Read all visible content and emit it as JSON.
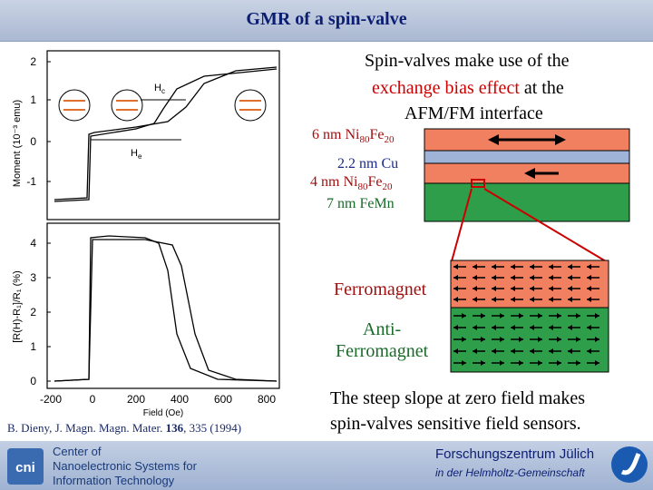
{
  "title": "GMR of a spin-valve",
  "right_text": {
    "line1": "Spin-valves make use of the",
    "line2_red": "exchange bias effect",
    "line2_rest": " at the",
    "line3": "AFM/FM interface"
  },
  "layers": {
    "top": {
      "thickness": "6 nm Ni",
      "sub1": "80",
      "mid": "Fe",
      "sub2": "20"
    },
    "cu": "2.2 nm Cu",
    "bottom": {
      "thickness": "4 nm Ni",
      "sub1": "80",
      "mid": "Fe",
      "sub2": "20"
    },
    "femn": "7 nm FeMn"
  },
  "zoom_labels": {
    "ferro": "Ferromagnet",
    "anti1": "Anti-",
    "anti2": "Ferromagnet"
  },
  "conclusion": {
    "line1": "The steep slope at zero field makes",
    "line2": "spin-valves sensitive field sensors."
  },
  "citation": {
    "pre": "B. Dieny, J. Magn. Magn. Mater. ",
    "vol": "136",
    "post": ", 335 (1994)"
  },
  "footer": {
    "cni_lines": [
      "Center of",
      "Nanoelectronic Systems for",
      "Information Technology"
    ],
    "fz_name": "Forschungszentrum Jülich",
    "fz_sub": "in der Helmholtz-Gemeinschaft",
    "logo_text": "cni"
  },
  "plot": {
    "top_ylabel": "Moment (10⁻³ emu)",
    "top_yticks": [
      "2",
      "1",
      "0",
      "-1"
    ],
    "bottom_ylabel": "[R(H)-R₁]/R₁ (%)",
    "bottom_yticks": [
      "4",
      "3",
      "2",
      "1",
      "0"
    ],
    "xticks": [
      "-200",
      "0",
      "200",
      "400",
      "600",
      "800"
    ],
    "xlabel": "Field (Oe)",
    "hc_label": "H",
    "hc_sub": "c",
    "he_label": "H",
    "he_sub": "e"
  },
  "colors": {
    "title": "#0b1e73",
    "red": "#cc0000",
    "ferro": "#f08060",
    "cu": "#9fb3d8",
    "afm": "#2e9e4a"
  }
}
